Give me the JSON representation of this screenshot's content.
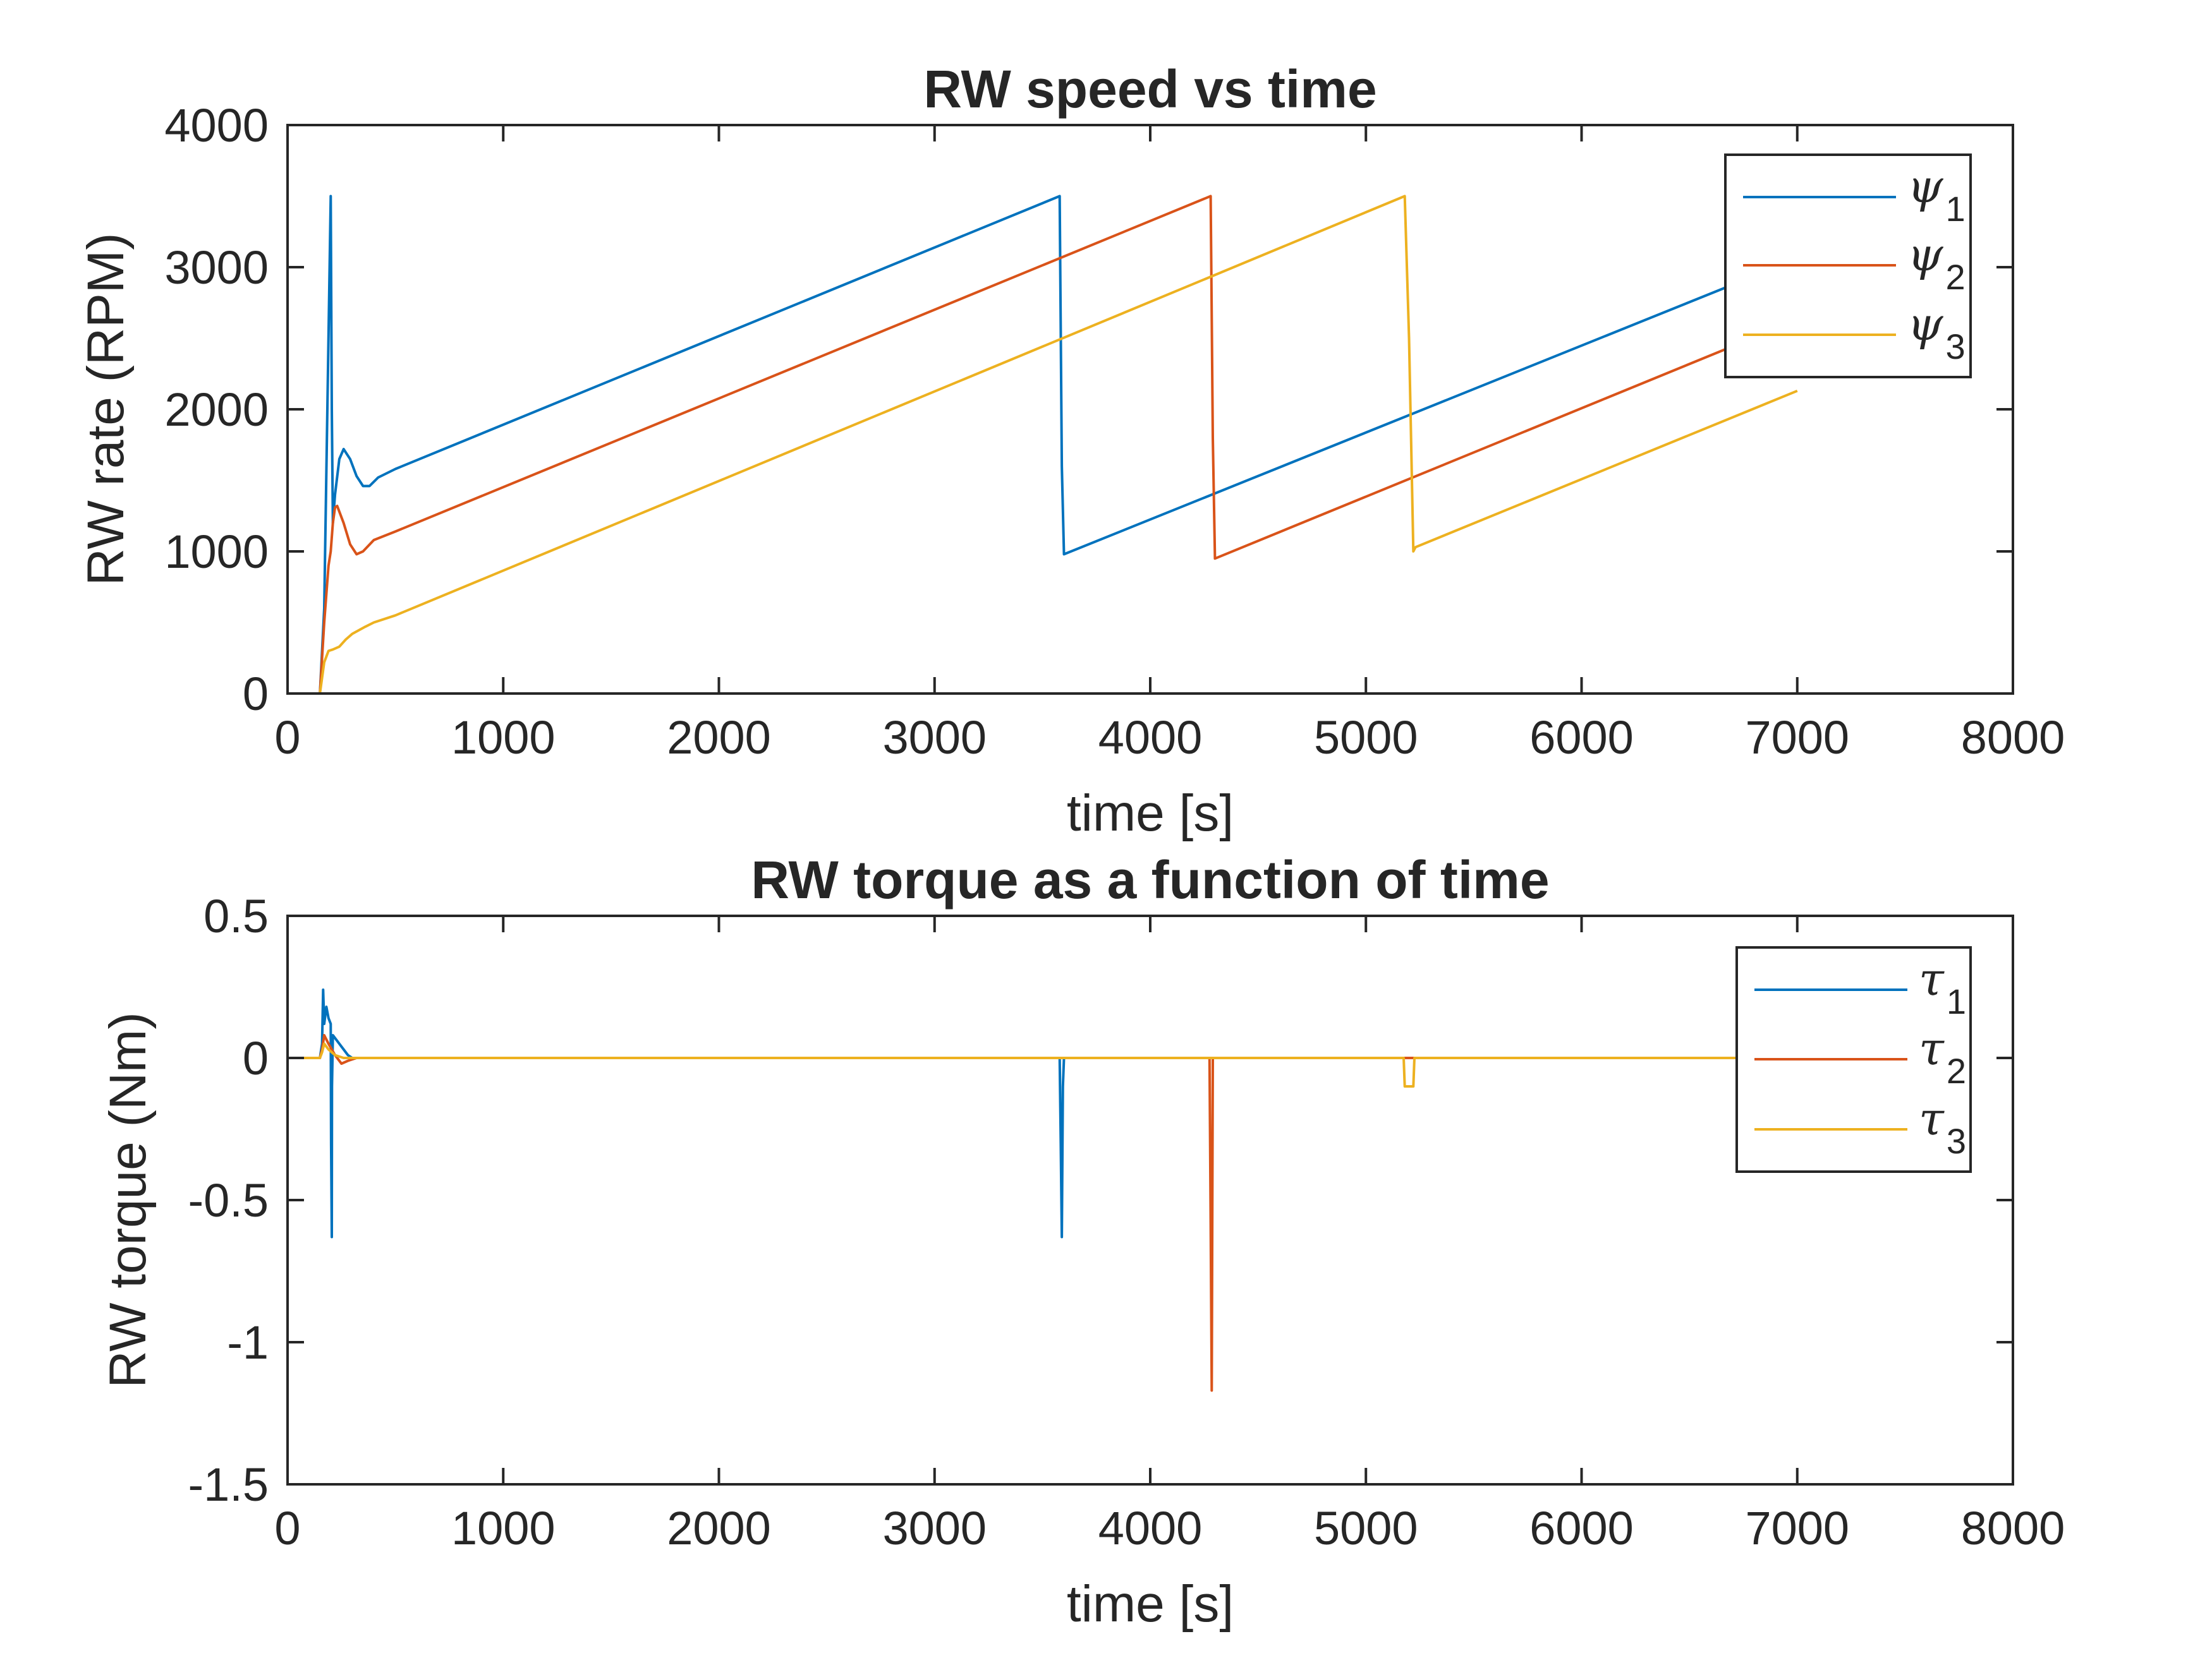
{
  "chart_data": [
    {
      "type": "line",
      "title": "RW speed vs time",
      "xlabel": "time [s]",
      "ylabel": "RW rate (RPM)",
      "xlim": [
        0,
        8000
      ],
      "ylim": [
        0,
        4000
      ],
      "xticks": [
        0,
        1000,
        2000,
        3000,
        4000,
        5000,
        6000,
        7000,
        8000
      ],
      "yticks": [
        0,
        1000,
        2000,
        3000,
        4000
      ],
      "xtick_labels": [
        "0",
        "1000",
        "2000",
        "3000",
        "4000",
        "5000",
        "6000",
        "7000",
        "8000"
      ],
      "ytick_labels": [
        "0",
        "1000",
        "2000",
        "3000",
        "4000"
      ],
      "grid": false,
      "legend_position": "top-right",
      "series": [
        {
          "name": "ψ1",
          "symbol": "ψ",
          "sub": "1",
          "color": "#0072BD",
          "x": [
            0,
            150,
            170,
            200,
            205,
            210,
            220,
            240,
            260,
            290,
            320,
            350,
            380,
            420,
            500,
            3580,
            3590,
            3600,
            7000
          ],
          "y": [
            0,
            0,
            600,
            3500,
            2000,
            1200,
            1400,
            1650,
            1720,
            1650,
            1530,
            1460,
            1460,
            1520,
            1580,
            3500,
            1600,
            980,
            3060
          ]
        },
        {
          "name": "ψ2",
          "symbol": "ψ",
          "sub": "2",
          "color": "#D95319",
          "x": [
            0,
            150,
            170,
            190,
            200,
            210,
            220,
            230,
            260,
            290,
            320,
            350,
            400,
            500,
            4280,
            4290,
            4300,
            7000
          ],
          "y": [
            0,
            0,
            500,
            900,
            1000,
            1200,
            1310,
            1320,
            1200,
            1050,
            980,
            1000,
            1080,
            1140,
            3500,
            1800,
            950,
            2630
          ]
        },
        {
          "name": "ψ3",
          "symbol": "ψ",
          "sub": "3",
          "color": "#EDB120",
          "x": [
            0,
            150,
            170,
            190,
            210,
            240,
            270,
            300,
            360,
            400,
            500,
            5180,
            5200,
            5220,
            5230,
            7000
          ],
          "y": [
            0,
            0,
            220,
            300,
            310,
            330,
            380,
            420,
            470,
            500,
            550,
            3500,
            2500,
            1000,
            1030,
            2130
          ]
        }
      ]
    },
    {
      "type": "line",
      "title": "RW torque as a function of time",
      "xlabel": "time [s]",
      "ylabel": "RW torque (Nm)",
      "xlim": [
        0,
        8000
      ],
      "ylim": [
        -1.5,
        0.5
      ],
      "xticks": [
        0,
        1000,
        2000,
        3000,
        4000,
        5000,
        6000,
        7000,
        8000
      ],
      "yticks": [
        -1.5,
        -1,
        -0.5,
        0,
        0.5
      ],
      "xtick_labels": [
        "0",
        "1000",
        "2000",
        "3000",
        "4000",
        "5000",
        "6000",
        "7000",
        "8000"
      ],
      "ytick_labels": [
        "-1.5",
        "-1",
        "-0.5",
        "0",
        "0.5"
      ],
      "grid": false,
      "legend_position": "top-right",
      "series": [
        {
          "name": "τ1",
          "symbol": "τ",
          "sub": "1",
          "color": "#0072BD",
          "x": [
            0,
            150,
            160,
            165,
            170,
            180,
            190,
            200,
            202,
            205,
            206,
            210,
            230,
            260,
            280,
            300,
            3580,
            3585,
            3590,
            3595,
            3600,
            7000
          ],
          "y": [
            0,
            0,
            0.05,
            0.24,
            0.12,
            0.18,
            0.14,
            0.12,
            -0.3,
            -0.63,
            -0.1,
            0.08,
            0.06,
            0.03,
            0.01,
            0,
            0,
            -0.3,
            -0.63,
            -0.1,
            0,
            0
          ]
        },
        {
          "name": "τ2",
          "symbol": "τ",
          "sub": "2",
          "color": "#D95319",
          "x": [
            0,
            150,
            160,
            170,
            190,
            220,
            250,
            280,
            320,
            4275,
            4280,
            4285,
            4290,
            7000
          ],
          "y": [
            0,
            0,
            0.03,
            0.08,
            0.05,
            0.01,
            -0.02,
            -0.01,
            0,
            0,
            -0.58,
            -1.17,
            0,
            0
          ]
        },
        {
          "name": "τ3",
          "symbol": "τ",
          "sub": "3",
          "color": "#EDB120",
          "x": [
            0,
            150,
            160,
            170,
            190,
            220,
            260,
            5175,
            5180,
            5220,
            5225,
            7000
          ],
          "y": [
            0,
            0,
            0.02,
            0.05,
            0.03,
            0.01,
            0,
            0,
            -0.1,
            -0.1,
            0,
            0
          ]
        }
      ]
    }
  ]
}
